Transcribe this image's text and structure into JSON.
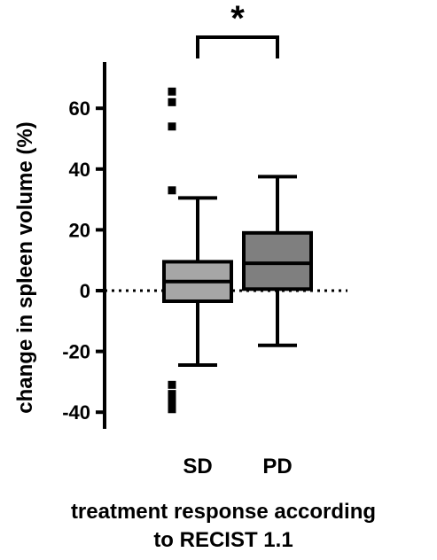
{
  "chart_data": {
    "type": "box",
    "title": "",
    "xlabel": "treatment response according to RECIST 1.1",
    "xlabel_lines": [
      "treatment response according",
      "to RECIST 1.1"
    ],
    "ylabel": "change in spleen volume (%)",
    "ylim": [
      -42,
      72
    ],
    "yticks": [
      -40,
      -20,
      0,
      20,
      40,
      60
    ],
    "ytick_labels": [
      "-40",
      "-20",
      "0",
      "20",
      "40",
      "60"
    ],
    "categories": [
      "SD",
      "PD"
    ],
    "boxes": [
      {
        "category": "SD",
        "whisker_low": -24.5,
        "q1": -3.5,
        "median": 3,
        "q3": 9.5,
        "whisker_high": 30.5,
        "outliers": [
          65.5,
          62,
          54,
          33,
          -31,
          -34,
          -36.5,
          -39
        ],
        "color": "#a6a6a6"
      },
      {
        "category": "PD",
        "whisker_low": -18,
        "q1": 0.5,
        "median": 9,
        "q3": 19,
        "whisker_high": 37.5,
        "outliers": [],
        "color": "#7f7f7f"
      }
    ],
    "reference_line": {
      "y": 0,
      "style": "dotted"
    },
    "significance": {
      "between": [
        "SD",
        "PD"
      ],
      "label": "*"
    },
    "grid": false,
    "legend": "none"
  }
}
